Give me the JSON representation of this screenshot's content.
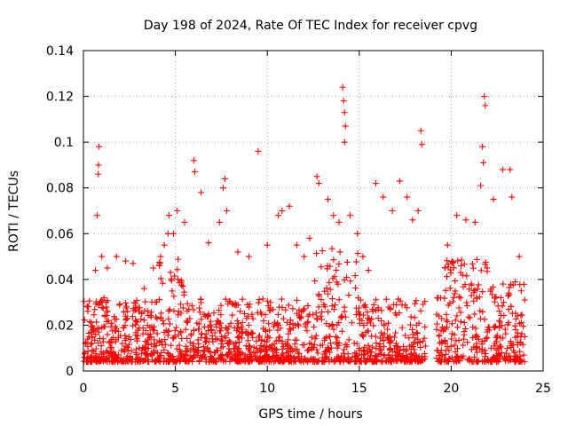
{
  "chart_data": {
    "type": "scatter",
    "title": "Day 198 of 2024, Rate Of TEC Index for receiver cpvg",
    "xlabel": "GPS time / hours",
    "ylabel": "ROTI / TECUs",
    "xlim": [
      0,
      25
    ],
    "ylim": [
      0,
      0.14
    ],
    "xticks": [
      "0",
      "5",
      "10",
      "15",
      "20",
      "25"
    ],
    "yticks": [
      "0",
      "0.02",
      "0.04",
      "0.06",
      "0.08",
      "0.1",
      "0.12",
      "0.14"
    ],
    "grid": true,
    "marker": "+",
    "series_color": "#ff0000",
    "observation_span_hours": [
      0,
      24
    ],
    "data_gap_hours": [
      18.6,
      19.2
    ],
    "series": [
      {
        "name": "ROTI",
        "points": [
          [
            0.1,
            0.012
          ],
          [
            0.3,
            0.015
          ],
          [
            0.5,
            0.018
          ],
          [
            0.65,
            0.044
          ],
          [
            0.75,
            0.068
          ],
          [
            0.8,
            0.086
          ],
          [
            0.82,
            0.09
          ],
          [
            0.85,
            0.098
          ],
          [
            1.0,
            0.05
          ],
          [
            1.3,
            0.045
          ],
          [
            1.8,
            0.05
          ],
          [
            2.3,
            0.048
          ],
          [
            2.7,
            0.047
          ],
          [
            3.3,
            0.036
          ],
          [
            3.8,
            0.045
          ],
          [
            4.2,
            0.05
          ],
          [
            4.4,
            0.055
          ],
          [
            4.6,
            0.06
          ],
          [
            4.65,
            0.068
          ],
          [
            4.9,
            0.06
          ],
          [
            5.1,
            0.07
          ],
          [
            5.5,
            0.065
          ],
          [
            6.0,
            0.092
          ],
          [
            6.05,
            0.087
          ],
          [
            6.4,
            0.078
          ],
          [
            6.8,
            0.056
          ],
          [
            7.4,
            0.065
          ],
          [
            7.6,
            0.08
          ],
          [
            7.7,
            0.084
          ],
          [
            7.8,
            0.07
          ],
          [
            8.4,
            0.052
          ],
          [
            9.0,
            0.05
          ],
          [
            9.5,
            0.096
          ],
          [
            10.0,
            0.055
          ],
          [
            10.6,
            0.068
          ],
          [
            10.8,
            0.07
          ],
          [
            11.2,
            0.072
          ],
          [
            11.6,
            0.055
          ],
          [
            12.0,
            0.05
          ],
          [
            12.3,
            0.058
          ],
          [
            12.7,
            0.085
          ],
          [
            12.8,
            0.082
          ],
          [
            13.3,
            0.075
          ],
          [
            13.6,
            0.068
          ],
          [
            13.9,
            0.065
          ],
          [
            14.1,
            0.124
          ],
          [
            14.15,
            0.118
          ],
          [
            14.2,
            0.113
          ],
          [
            14.25,
            0.107
          ],
          [
            14.2,
            0.1
          ],
          [
            14.5,
            0.068
          ],
          [
            14.9,
            0.06
          ],
          [
            15.2,
            0.05
          ],
          [
            15.5,
            0.044
          ],
          [
            15.9,
            0.082
          ],
          [
            16.3,
            0.076
          ],
          [
            16.8,
            0.07
          ],
          [
            17.2,
            0.083
          ],
          [
            17.6,
            0.076
          ],
          [
            17.9,
            0.066
          ],
          [
            18.2,
            0.07
          ],
          [
            18.35,
            0.105
          ],
          [
            18.4,
            0.099
          ],
          [
            19.3,
            0.032
          ],
          [
            19.8,
            0.055
          ],
          [
            20.3,
            0.068
          ],
          [
            20.8,
            0.066
          ],
          [
            21.3,
            0.065
          ],
          [
            21.6,
            0.081
          ],
          [
            21.7,
            0.098
          ],
          [
            21.75,
            0.091
          ],
          [
            21.8,
            0.12
          ],
          [
            21.85,
            0.116
          ],
          [
            22.3,
            0.075
          ],
          [
            22.8,
            0.088
          ],
          [
            23.2,
            0.088
          ],
          [
            23.3,
            0.076
          ],
          [
            23.7,
            0.05
          ],
          [
            24.0,
            0.015
          ]
        ]
      }
    ]
  }
}
